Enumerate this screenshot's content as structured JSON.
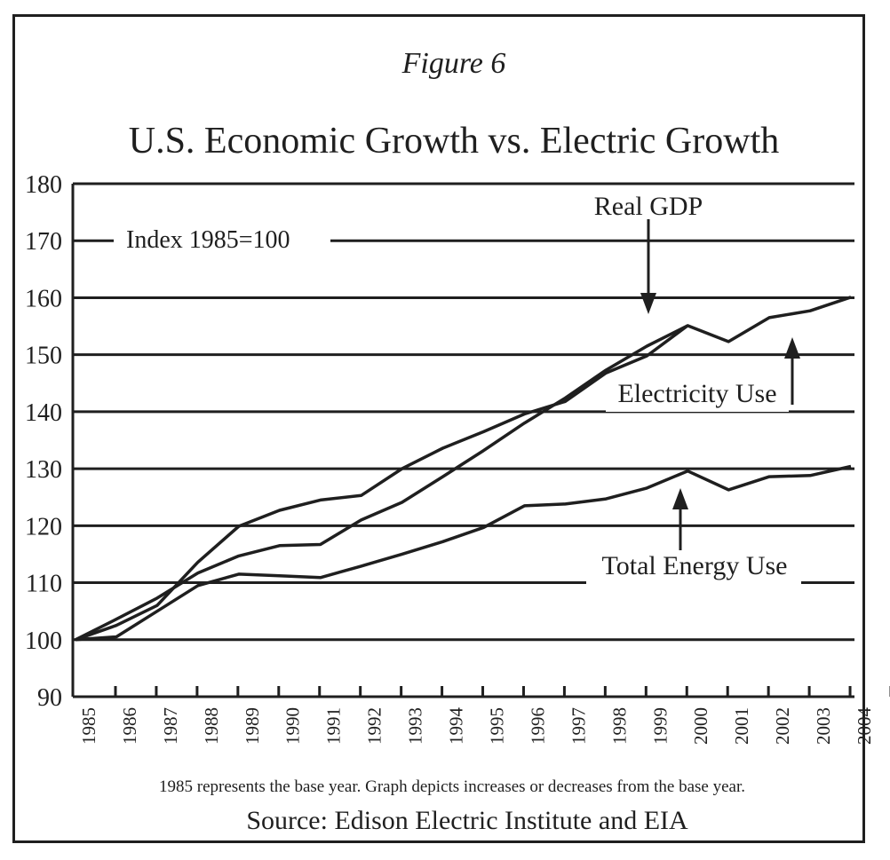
{
  "chart_data": {
    "type": "line",
    "figure_label": "Figure 6",
    "title": "U.S. Economic Growth vs. Electric Growth",
    "index_note": "Index 1985=100",
    "footnote": "1985 represents the base year. Graph depicts increases or decreases from the base year.",
    "source": "Source: Edison Electric Institute and EIA",
    "ylim": [
      90,
      180
    ],
    "yticks": [
      90,
      100,
      110,
      120,
      130,
      140,
      150,
      160,
      170,
      180
    ],
    "grid": true,
    "xticks": [
      "1985",
      "1986",
      "1987",
      "1988",
      "1989",
      "1990",
      "1991",
      "1992",
      "1993",
      "1994",
      "1995",
      "1996",
      "1997",
      "1998",
      "1999",
      "2000",
      "2001",
      "2002",
      "2003",
      "2004"
    ],
    "series": [
      {
        "name": "Real GDP",
        "x": [
          1985,
          1986,
          1987,
          1988,
          1989,
          1990,
          1991,
          1992,
          1993,
          1994,
          1995,
          1996,
          1997,
          1998,
          1999,
          2000,
          2001,
          2002,
          2003,
          2004
        ],
        "values": [
          100,
          103.6,
          107.3,
          111.7,
          114.7,
          116.5,
          116.7,
          121,
          124.1,
          128.6,
          133.2,
          138,
          142.4,
          147.3,
          151.5,
          155.1,
          152.3,
          156.5,
          157.7,
          160.1
        ]
      },
      {
        "name": "Electricity Use",
        "x": [
          1985,
          1986,
          1987,
          1988,
          1989,
          1990,
          1991,
          1992,
          1993,
          1994,
          1995,
          1996,
          1997,
          1998,
          1999,
          2000
        ],
        "values": [
          100,
          102.5,
          106,
          113.6,
          119.9,
          122.7,
          124.5,
          125.3,
          130,
          133.6,
          136.5,
          139.6,
          141.8,
          146.8,
          149.8,
          155.1
        ]
      },
      {
        "name": "Total Energy Use",
        "x": [
          1985,
          1986,
          1987,
          1988,
          1989,
          1990,
          1991,
          1992,
          1993,
          1994,
          1995,
          1996,
          1997,
          1998,
          1999,
          2000,
          2001,
          2002,
          2003,
          2004
        ],
        "values": [
          100,
          100.5,
          105,
          109.5,
          111.5,
          111.2,
          110.9,
          112.9,
          115,
          117.2,
          119.7,
          123.5,
          123.8,
          124.7,
          126.6,
          129.6,
          126.3,
          128.6,
          128.8,
          130.4
        ]
      }
    ],
    "annotations": [
      "Real GDP",
      "Electricity Use",
      "Total Energy Use"
    ]
  }
}
